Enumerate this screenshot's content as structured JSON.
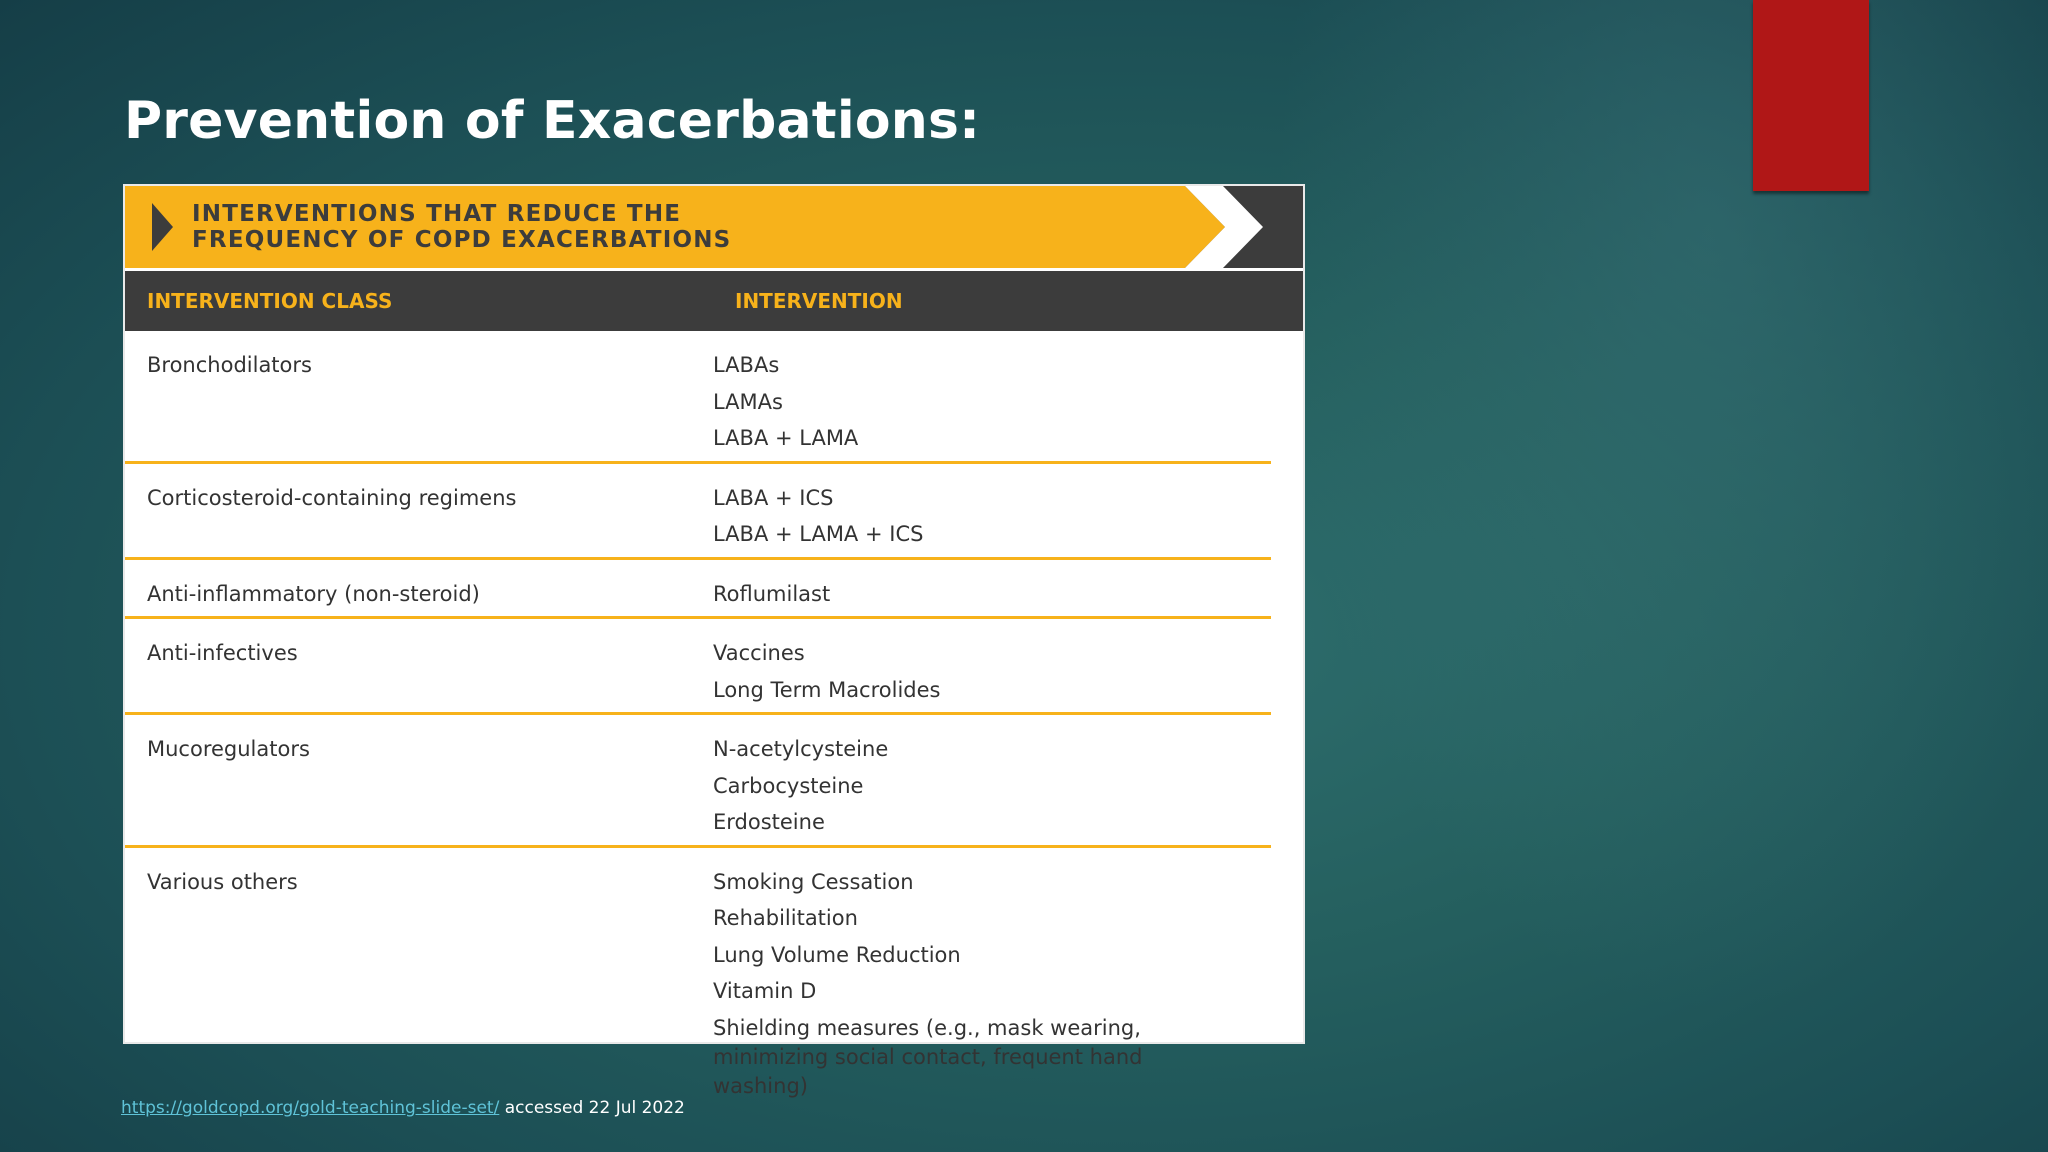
{
  "slide": {
    "title": "Prevention of Exacerbations:",
    "accent_color": "#b01717"
  },
  "table": {
    "banner_line1": "INTERVENTIONS THAT REDUCE THE",
    "banner_line2": "FREQUENCY OF COPD EXACERBATIONS",
    "header_col1": "INTERVENTION CLASS",
    "header_col2": "INTERVENTION",
    "colors": {
      "banner": "#f7b21b",
      "dark": "#3c3c3c",
      "divider": "#f7b21b"
    },
    "rows": [
      {
        "class": "Bronchodilators",
        "items": [
          "LABAs",
          "LAMAs",
          "LABA + LAMA"
        ]
      },
      {
        "class": "Corticosteroid-containing regimens",
        "items": [
          "LABA + ICS",
          "LABA + LAMA + ICS"
        ]
      },
      {
        "class": "Anti-inflammatory (non-steroid)",
        "items": [
          "Roflumilast"
        ]
      },
      {
        "class": "Anti-infectives",
        "items": [
          "Vaccines",
          "Long Term Macrolides"
        ]
      },
      {
        "class": "Mucoregulators",
        "items": [
          "N-acetylcysteine",
          "Carbocysteine",
          "Erdosteine"
        ]
      },
      {
        "class": "Various others",
        "items": [
          "Smoking Cessation",
          "Rehabilitation",
          "Lung Volume Reduction",
          "Vitamin D",
          "Shielding measures (e.g., mask wearing, minimizing social contact, frequent hand washing)"
        ]
      }
    ]
  },
  "footer": {
    "link_text": "https://goldcopd.org/gold-teaching-slide-set/",
    "suffix": " accessed 22 Jul 2022"
  }
}
